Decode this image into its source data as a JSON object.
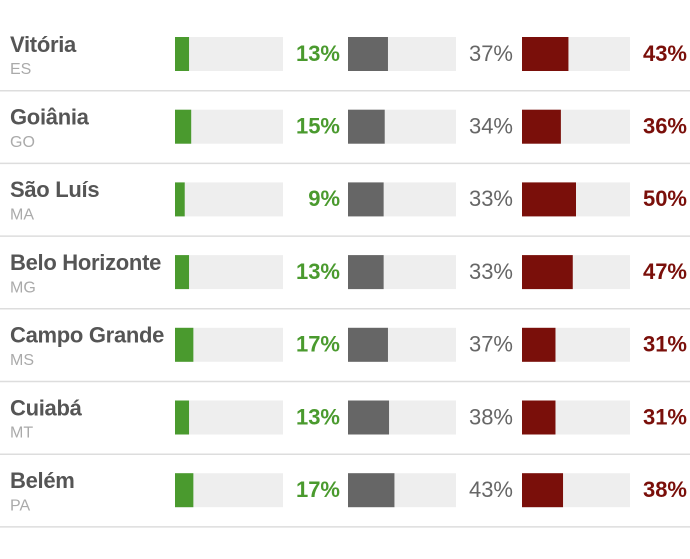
{
  "chart_data": {
    "type": "bar",
    "categories": [
      "Vitória",
      "Goiânia",
      "São Luís",
      "Belo Horizonte",
      "Campo Grande",
      "Cuiabá",
      "Belém"
    ],
    "states": [
      "ES",
      "GO",
      "MA",
      "MG",
      "MS",
      "MT",
      "PA"
    ],
    "xlim": [
      0,
      100
    ],
    "series": [
      {
        "color": "#4a9a2e",
        "values": [
          13,
          15,
          9,
          13,
          17,
          13,
          17
        ],
        "value_labels": [
          "13%",
          "15%",
          "9%",
          "13%",
          "17%",
          "13%",
          "17%"
        ]
      },
      {
        "color": "#666666",
        "values": [
          37,
          34,
          33,
          33,
          37,
          38,
          43
        ],
        "value_labels": [
          "37%",
          "34%",
          "33%",
          "33%",
          "37%",
          "38%",
          "43%"
        ]
      },
      {
        "color": "#7a0f0a",
        "values": [
          43,
          36,
          50,
          47,
          31,
          31,
          38
        ],
        "value_labels": [
          "43%",
          "36%",
          "50%",
          "47%",
          "31%",
          "31%",
          "38%"
        ]
      }
    ]
  }
}
